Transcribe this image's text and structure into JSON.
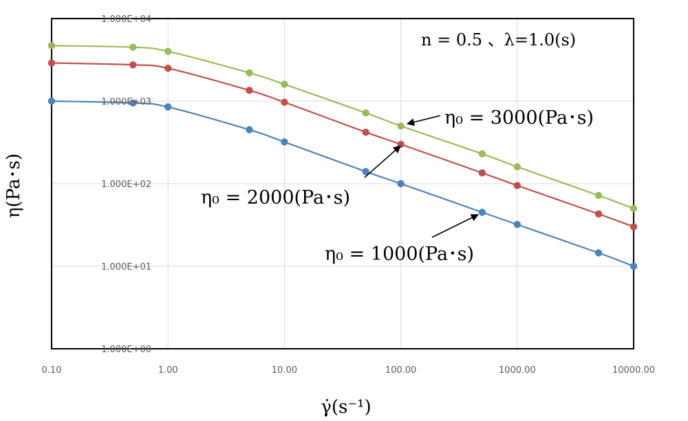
{
  "chart_data": {
    "type": "line",
    "x_scale": "log",
    "y_scale": "log",
    "xlim": [
      0.1,
      10000
    ],
    "ylim": [
      1,
      10000
    ],
    "grid": true,
    "x_ticks": [
      0.1,
      1,
      10,
      100,
      1000,
      10000
    ],
    "x_tick_labels": [
      "0.10",
      "1.00",
      "10.00",
      "100.00",
      "1000.00",
      "10000.00"
    ],
    "y_ticks": [
      1,
      10,
      100,
      1000,
      10000
    ],
    "y_tick_labels": [
      "1.000E+00",
      "1.000E+01",
      "1.000E+02",
      "1.000E+03",
      "1.000E+04"
    ],
    "xlabel": "γ̇(s⁻¹)",
    "ylabel": "η(Pa･s)",
    "parameter_text": "n = 0.5 、λ=1.0(s)",
    "x": [
      0.1,
      0.5,
      1,
      5,
      10,
      50,
      100,
      500,
      1000,
      5000,
      10000
    ],
    "series": [
      {
        "label": "η₀ = 3000(Pa･s)",
        "color": "#9BBB59",
        "values": [
          4700,
          4500,
          4000,
          2200,
          1600,
          720,
          500,
          230,
          160,
          72,
          50
        ]
      },
      {
        "label": "η₀ = 2000(Pa･s)",
        "color": "#C0504D",
        "values": [
          2900,
          2750,
          2500,
          1350,
          970,
          420,
          300,
          135,
          95,
          43,
          30
        ]
      },
      {
        "label": "η₀ = 1000(Pa･s)",
        "color": "#4F81BD",
        "values": [
          1000,
          950,
          850,
          450,
          320,
          140,
          100,
          45,
          32,
          14.5,
          10
        ]
      }
    ]
  }
}
